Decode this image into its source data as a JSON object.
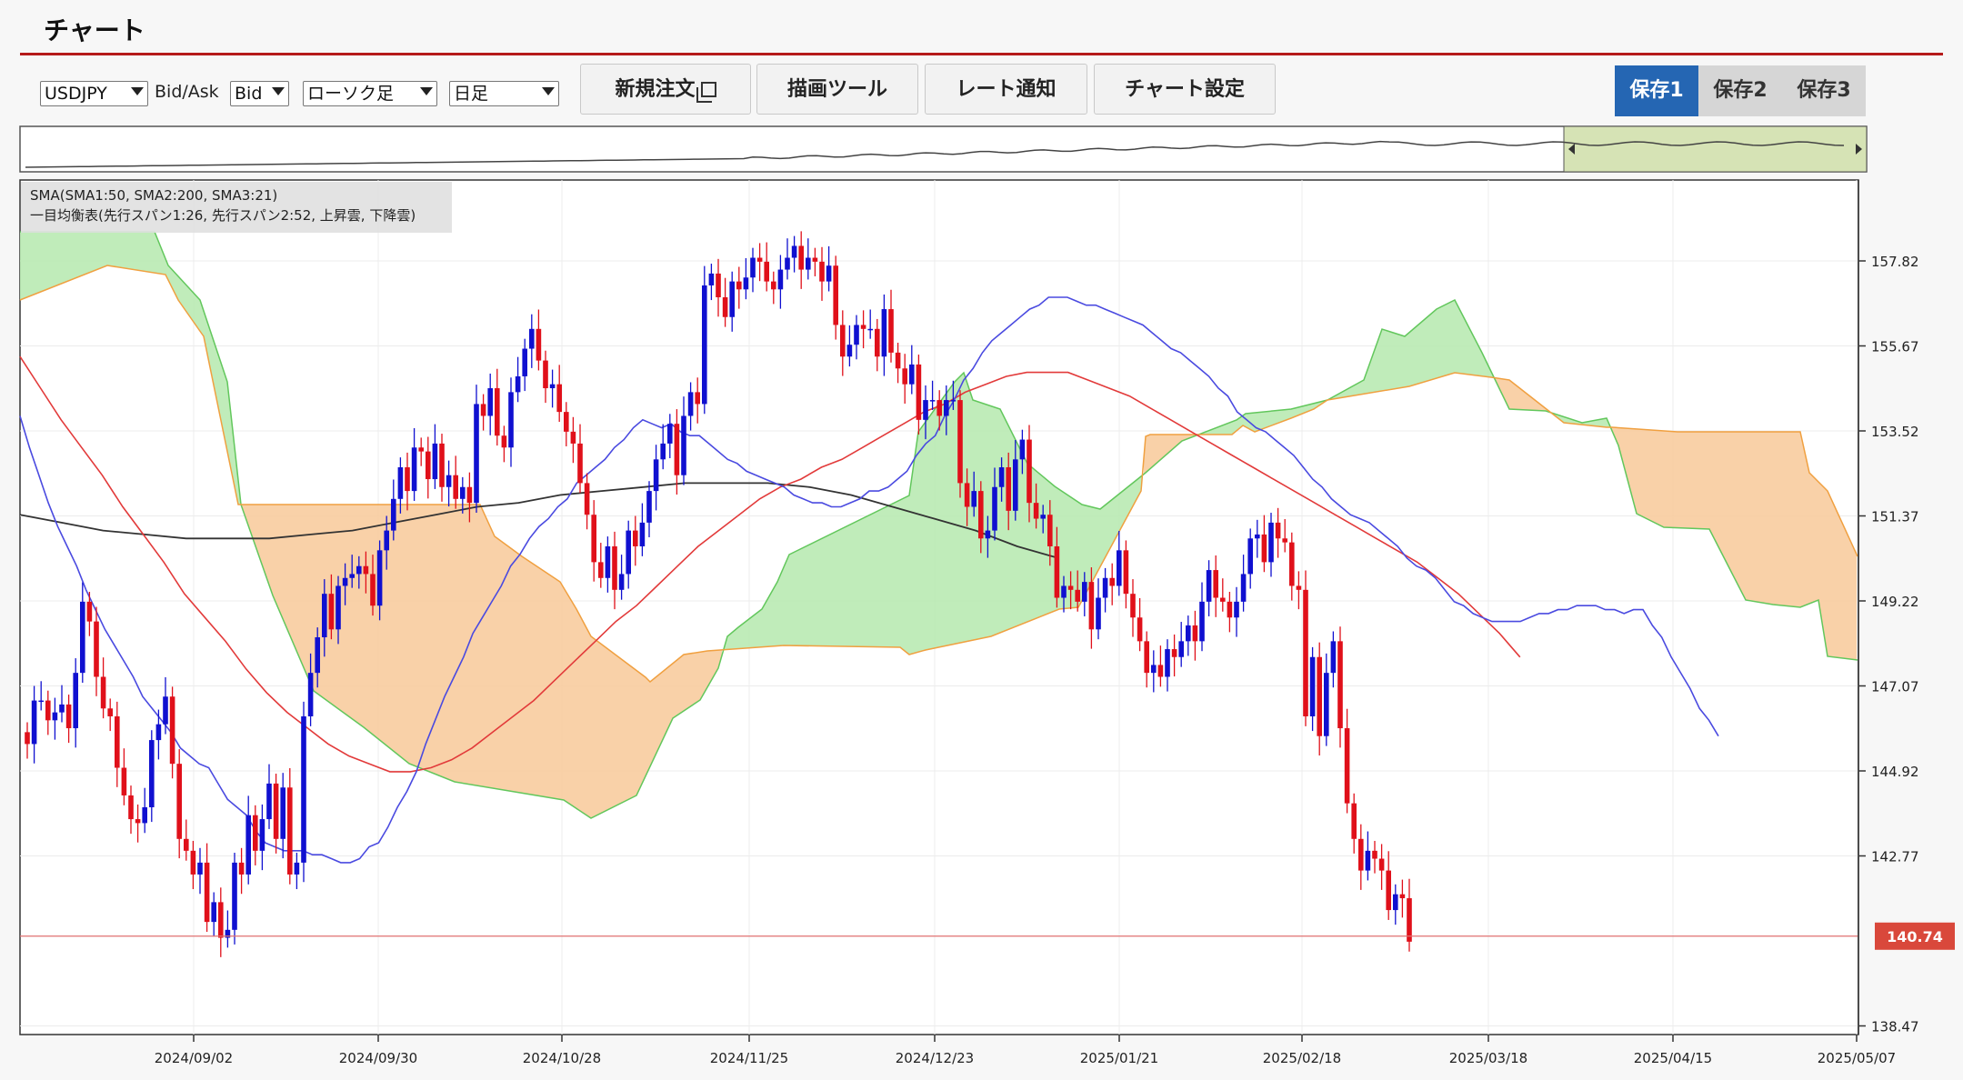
{
  "page_title": "チャート",
  "toolbar": {
    "symbol": "USDJPY",
    "bidask_label": "Bid/Ask",
    "bidask": "Bid",
    "chart_type": "ローソク足",
    "timeframe": "日足",
    "new_order": "新規注文",
    "drawing_tools": "描画ツール",
    "rate_alert": "レート通知",
    "chart_settings": "チャート設定",
    "save_slots": [
      "保存1",
      "保存2",
      "保存3"
    ],
    "active_save": 0
  },
  "legend": {
    "sma": "SMA(SMA1:50, SMA2:200, SMA3:21)",
    "ichimoku": "一目均衡表(先行スパン1:26, 先行スパン2:52, 上昇雲, 下降雲)"
  },
  "colors": {
    "up_candle": "#1010d0",
    "down_candle": "#e0101a",
    "sma50": "#e23a3a",
    "sma200": "#333333",
    "sma21": "#4a4ae0",
    "cloud_up_fill": "#b9eab3",
    "cloud_up_line": "#62c75c",
    "cloud_down_fill": "#f8cc9e",
    "cloud_down_line": "#f0a040",
    "current_price_line": "#e07070",
    "current_price_badge": "#d9483b",
    "accent": "#b51a1a"
  },
  "chart_data": {
    "type": "candlestick",
    "y_axis_ticks": [
      "157.82",
      "155.67",
      "153.52",
      "151.37",
      "149.22",
      "147.07",
      "144.92",
      "142.77",
      "138.47"
    ],
    "current_price": "140.74",
    "x_axis_ticks": [
      "2024/09/02",
      "2024/09/30",
      "2024/10/28",
      "2024/11/25",
      "2024/12/23",
      "2025/01/21",
      "2025/02/18",
      "2025/03/18",
      "2025/04/15",
      "2025/05/07"
    ],
    "close": [
      145.6,
      146.7,
      146.7,
      146.2,
      146.4,
      146.6,
      146.0,
      147.4,
      149.2,
      148.7,
      147.3,
      146.5,
      146.3,
      145.0,
      144.3,
      143.7,
      143.6,
      144.0,
      145.7,
      146.1,
      146.8,
      145.1,
      143.2,
      142.9,
      142.3,
      142.6,
      141.1,
      141.6,
      140.7,
      140.9,
      142.6,
      142.3,
      143.8,
      142.9,
      143.7,
      144.6,
      143.2,
      144.5,
      142.3,
      142.6,
      146.3,
      147.4,
      148.3,
      149.4,
      148.5,
      149.6,
      149.8,
      149.9,
      150.1,
      149.9,
      149.1,
      150.5,
      151.0,
      151.8,
      152.6,
      152.0,
      153.1,
      153.0,
      152.3,
      153.2,
      152.1,
      152.4,
      151.8,
      152.1,
      151.7,
      154.2,
      153.9,
      154.6,
      153.4,
      153.1,
      154.5,
      154.9,
      155.6,
      156.1,
      155.3,
      154.6,
      154.7,
      154.0,
      153.5,
      153.2,
      152.2,
      151.4,
      150.2,
      149.8,
      150.6,
      149.5,
      149.9,
      151.0,
      150.6,
      151.2,
      152.0,
      152.8,
      153.2,
      153.7,
      152.4,
      153.9,
      154.5,
      154.2,
      157.2,
      157.5,
      156.9,
      156.4,
      157.3,
      157.1,
      157.4,
      157.9,
      157.8,
      157.3,
      157.1,
      157.6,
      157.9,
      158.2,
      157.6,
      157.9,
      157.8,
      157.3,
      157.7,
      156.2,
      155.4,
      155.7,
      156.2,
      156.1,
      156.1,
      155.4,
      156.6,
      155.5,
      155.1,
      154.7,
      155.2,
      153.8,
      154.3,
      154.3,
      153.9,
      154.3,
      154.3,
      152.2,
      151.6,
      152.0,
      150.8,
      151.0,
      152.1,
      152.6,
      151.5,
      152.8,
      153.3,
      151.7,
      151.3,
      151.4,
      150.6,
      149.3,
      149.6,
      149.5,
      149.2,
      149.7,
      148.5,
      149.3,
      149.8,
      149.6,
      150.5,
      149.4,
      148.8,
      148.2,
      147.4,
      147.6,
      147.3,
      148.0,
      147.8,
      148.2,
      148.6,
      148.2,
      149.2,
      150.0,
      149.3,
      149.2,
      148.8,
      149.2,
      149.9,
      150.8,
      150.9,
      150.2,
      151.2,
      150.8,
      150.7,
      149.6,
      149.5,
      146.3,
      147.8,
      145.8,
      147.4,
      148.2,
      146.0,
      144.1,
      143.2,
      142.4,
      142.9,
      142.7,
      142.4,
      141.4,
      141.8,
      141.7,
      140.6
    ],
    "sma21": [
      153.9,
      153.1,
      152.4,
      151.7,
      151.1,
      150.6,
      150.1,
      149.5,
      149.0,
      148.5,
      148.1,
      147.7,
      147.3,
      146.8,
      146.5,
      146.2,
      145.9,
      145.5,
      145.3,
      145.1,
      145.0,
      144.6,
      144.2,
      144.0,
      143.8,
      143.4,
      143.1,
      143.0,
      142.9,
      142.9,
      142.9,
      142.8,
      142.8,
      142.7,
      142.6,
      142.6,
      142.7,
      143.0,
      143.1,
      143.5,
      144.0,
      144.4,
      144.9,
      145.6,
      146.2,
      146.8,
      147.3,
      147.8,
      148.4,
      148.8,
      149.2,
      149.6,
      150.1,
      150.4,
      150.8,
      151.1,
      151.3,
      151.6,
      151.8,
      152.2,
      152.4,
      152.6,
      152.8,
      153.1,
      153.3,
      153.6,
      153.8,
      153.7,
      153.6,
      153.7,
      153.5,
      153.4,
      153.4,
      153.2,
      153.0,
      152.8,
      152.7,
      152.5,
      152.4,
      152.3,
      152.2,
      152.1,
      151.9,
      151.8,
      151.7,
      151.7,
      151.6,
      151.6,
      151.7,
      151.8,
      152.0,
      152.0,
      152.1,
      152.3,
      152.5,
      152.9,
      153.2,
      153.4,
      153.9,
      154.3,
      154.8,
      155.1,
      155.5,
      155.8,
      156.0,
      156.2,
      156.4,
      156.6,
      156.7,
      156.9,
      156.9,
      156.9,
      156.8,
      156.7,
      156.7,
      156.6,
      156.5,
      156.4,
      156.3,
      156.2,
      156.0,
      155.8,
      155.6,
      155.5,
      155.3,
      155.1,
      154.9,
      154.6,
      154.4,
      154.0,
      153.8,
      153.6,
      153.5,
      153.3,
      153.1,
      152.9,
      152.6,
      152.3,
      152.1,
      151.8,
      151.6,
      151.4,
      151.3,
      151.2,
      151.0,
      150.8,
      150.6,
      150.3,
      150.1,
      150.0,
      149.8,
      149.5,
      149.2,
      149.1,
      148.9,
      148.8,
      148.7,
      148.7,
      148.7,
      148.7,
      148.8,
      148.9,
      148.9,
      149.0,
      149.0,
      149.1,
      149.1,
      149.1,
      149.0,
      149.0,
      148.9,
      149.0,
      149.0,
      148.6,
      148.3,
      147.8,
      147.4,
      147.0,
      146.5,
      146.2,
      145.8
    ],
    "sma50": [
      155.4,
      154.6,
      153.8,
      153.1,
      152.4,
      151.6,
      150.9,
      150.2,
      149.4,
      148.8,
      148.2,
      147.5,
      146.9,
      146.4,
      146.0,
      145.6,
      145.3,
      145.1,
      144.9,
      144.9,
      145.0,
      145.2,
      145.5,
      145.9,
      146.3,
      146.7,
      147.2,
      147.7,
      148.2,
      148.7,
      149.1,
      149.6,
      150.1,
      150.6,
      151.0,
      151.4,
      151.8,
      152.1,
      152.3,
      152.6,
      152.8,
      153.1,
      153.4,
      153.7,
      154.0,
      154.2,
      154.5,
      154.7,
      154.9,
      155.0,
      155.0,
      155.0,
      154.8,
      154.6,
      154.4,
      154.1,
      153.8,
      153.5,
      153.2,
      152.9,
      152.6,
      152.3,
      152.0,
      151.7,
      151.4,
      151.1,
      150.8,
      150.5,
      150.2,
      149.8,
      149.4,
      148.9,
      148.4,
      147.8
    ],
    "sma200": [
      151.4,
      151.2,
      151.0,
      150.9,
      150.8,
      150.8,
      150.8,
      150.9,
      151.0,
      151.2,
      151.4,
      151.6,
      151.7,
      151.9,
      152.0,
      152.1,
      152.2,
      152.2,
      152.2,
      152.1,
      151.9,
      151.6,
      151.3,
      151.0,
      150.6,
      150.3
    ],
    "cloud_note": "一目均衡表 先行スパン1・2 (上昇雲 / 下降雲)"
  }
}
